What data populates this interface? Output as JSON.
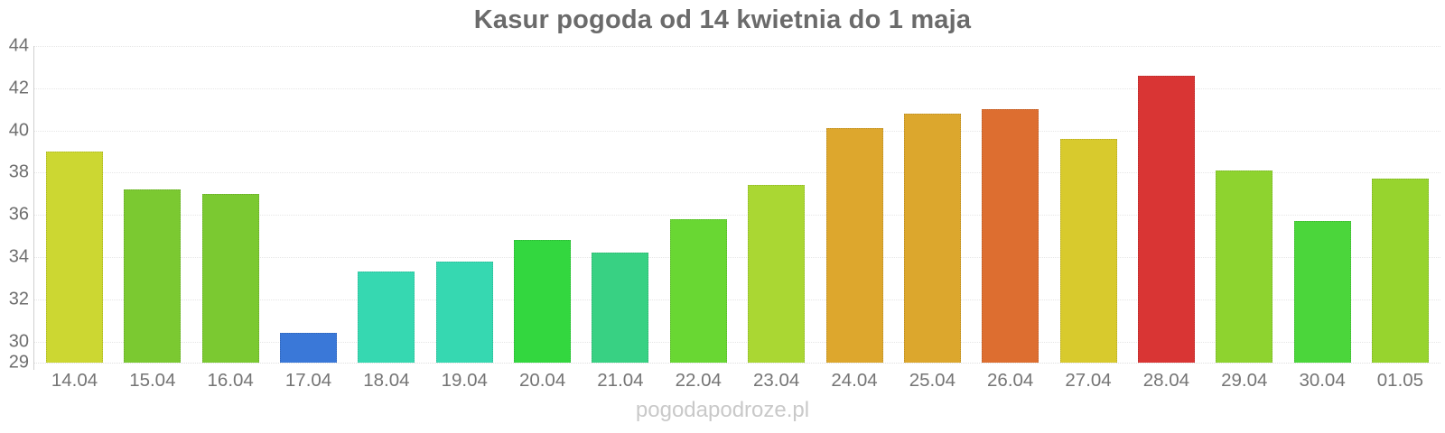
{
  "page": {
    "watermark": "pogodapodroze.pl",
    "background": "#ffffff"
  },
  "chart_data": {
    "type": "bar",
    "title": "Kasur pogoda od 14 kwietnia do 1 maja",
    "categories": [
      "14.04",
      "15.04",
      "16.04",
      "17.04",
      "18.04",
      "19.04",
      "20.04",
      "21.04",
      "22.04",
      "23.04",
      "24.04",
      "25.04",
      "26.04",
      "27.04",
      "28.04",
      "29.04",
      "30.04",
      "01.05"
    ],
    "values": [
      39.0,
      37.2,
      37.0,
      30.4,
      33.3,
      33.8,
      34.8,
      34.2,
      35.8,
      37.4,
      40.1,
      40.8,
      41.0,
      39.6,
      42.6,
      38.1,
      35.7,
      37.7
    ],
    "bar_colors": [
      "#ccd732",
      "#7bc931",
      "#7bc931",
      "#3a78d8",
      "#36d8b1",
      "#36d8b1",
      "#33d73f",
      "#38d183",
      "#69d733",
      "#aad733",
      "#dda72d",
      "#dca72d",
      "#dd6e30",
      "#d8ca2d",
      "#d93534",
      "#8ed32f",
      "#4bd63b",
      "#97d42e"
    ],
    "ylim": [
      29,
      44
    ],
    "yticks": [
      44,
      42,
      40,
      38,
      36,
      34,
      32,
      30,
      29
    ],
    "xlabel": "",
    "ylabel": "",
    "legend": "none",
    "grid": "horizontal-dotted",
    "title_color": "#6b6b6b",
    "axis_color": "#cfcfcf",
    "grid_color": "#e6e6e6",
    "tick_label_color": "#757575",
    "watermark_color": "#c9c9c9"
  }
}
